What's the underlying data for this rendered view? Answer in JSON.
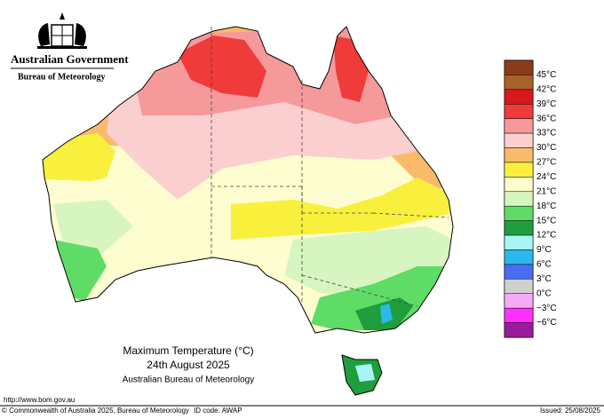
{
  "header": {
    "government": "Australian Government",
    "bureau": "Bureau of Meteorology"
  },
  "legend": {
    "colors": [
      "#8b3a1a",
      "#a8622a",
      "#d7191c",
      "#f03b3b",
      "#f5999b",
      "#fbcfcf",
      "#f9bb6a",
      "#f8f03c",
      "#fdfdd0",
      "#d7f5c0",
      "#5fdc66",
      "#1f9e3e",
      "#a8f5f7",
      "#2bb8ec",
      "#4a6cf0",
      "#d0d0d0",
      "#f7a8f7",
      "#ff30ff",
      "#9b1a9b"
    ],
    "labels": [
      "45°C",
      "42°C",
      "39°C",
      "36°C",
      "33°C",
      "30°C",
      "27°C",
      "24°C",
      "21°C",
      "18°C",
      "15°C",
      "12°C",
      "9°C",
      "6°C",
      "3°C",
      "0°C",
      "−3°C",
      "−6°C"
    ]
  },
  "title": {
    "line1": "Maximum Temperature (°C)",
    "line2": "24th August 2025",
    "line3": "Australian Bureau of Meteorology"
  },
  "footer": {
    "url": "http://www.bom.gov.au",
    "copyright": "© Commonwealth of Australia 2025, Bureau of Meteorology",
    "id_code": "ID code: AWAP",
    "issued": "Issued: 25/08/2025"
  }
}
